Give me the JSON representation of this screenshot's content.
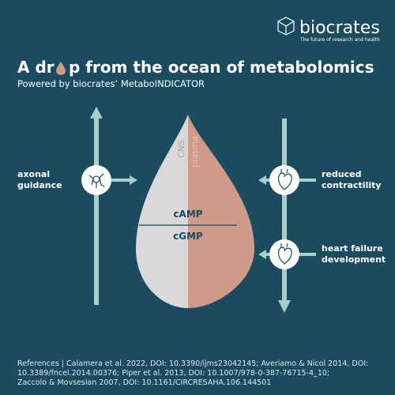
{
  "logo": {
    "name": "biocrates",
    "tagline": "The future of research and health"
  },
  "header": {
    "title_start": "A dr",
    "title_end": "p from the ocean of metabolomics",
    "subtitle": "Powered by biocrates’ MetaboINDICATOR"
  },
  "drop": {
    "left_label": "CNS",
    "right_label": "plasma",
    "upper": "cAMP",
    "lower": "cGMP"
  },
  "effects": [
    {
      "lines": [
        "axonal",
        "guidance"
      ]
    },
    {
      "lines": [
        "reduced",
        "contractility"
      ]
    },
    {
      "lines": [
        "heart failure",
        "development"
      ]
    }
  ],
  "references": [
    "References | Calamera et al. 2022, DOI: 10.3390/ijms23042145; Averiamo & Nicol 2014, DOI:",
    "10.3389/fncel.2014.00376; Piper et al. 2013, DOI: 10.1007/978-0-387-76715-4_10;",
    "Zaccolo & Movsesian 2007, DOI: 10.1161/CIRCRESAHA.106.144501"
  ]
}
